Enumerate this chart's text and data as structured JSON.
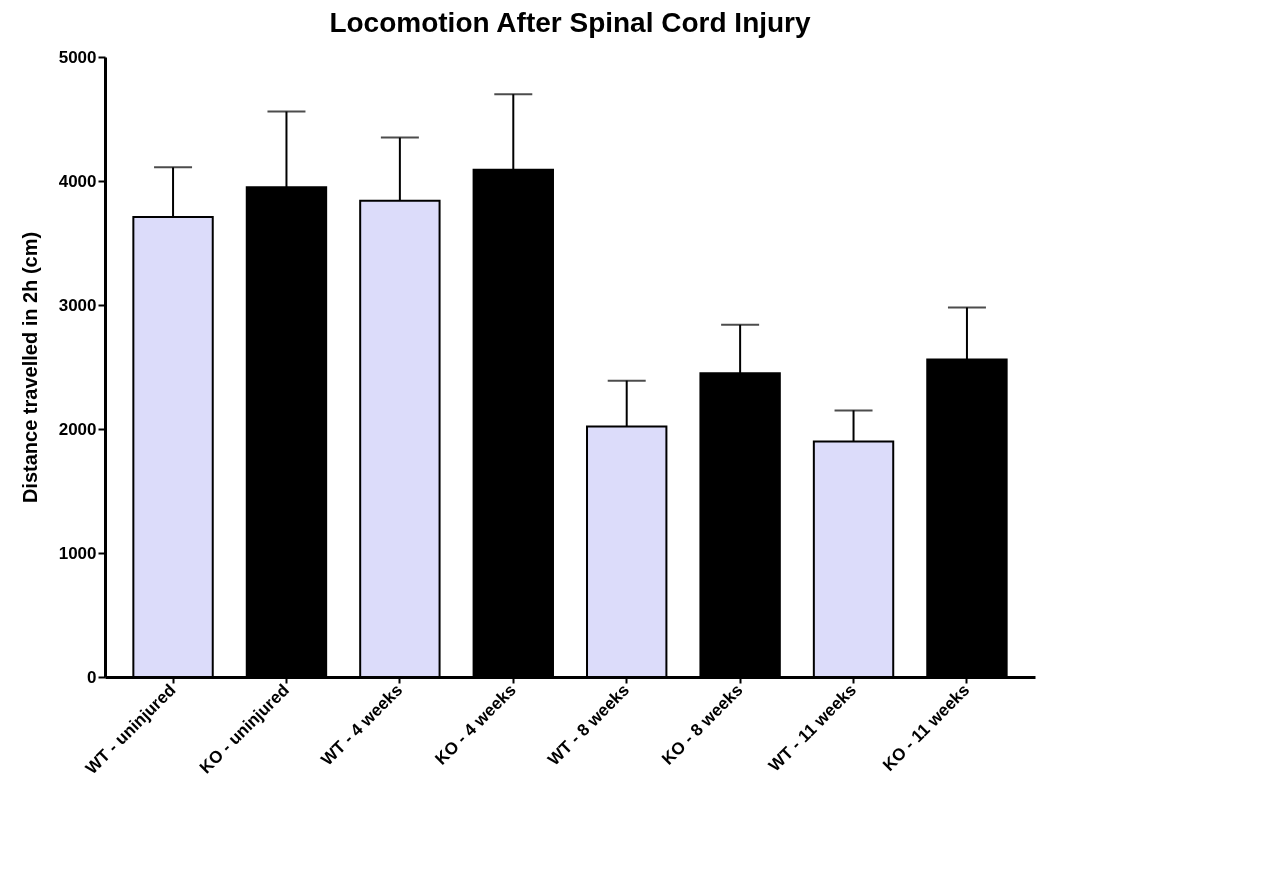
{
  "chart_data": {
    "type": "bar",
    "title": "Locomotion After Spinal Cord Injury",
    "ylabel": "Distance travelled in 2h (cm)",
    "categories": [
      "WT - uninjured",
      "KO - uninjured",
      "WT - 4 weeks",
      "KO - 4 weeks",
      "WT - 8 weeks",
      "KO - 8 weeks",
      "WT - 11 weeks",
      "KO - 11 weeks"
    ],
    "values": [
      3710,
      3950,
      3840,
      4090,
      2020,
      2450,
      1900,
      2560
    ],
    "colors": [
      "#dcdcfa",
      "#000000",
      "#dcdcfa",
      "#000000",
      "#dcdcfa",
      "#000000",
      "#dcdcfa",
      "#000000"
    ],
    "errors": [
      [
        3710,
        4110
      ],
      [
        3950,
        4560
      ],
      [
        3840,
        4350
      ],
      [
        4090,
        4700
      ],
      [
        2020,
        2390
      ],
      [
        2450,
        2840
      ],
      [
        1900,
        2150
      ],
      [
        2560,
        2980
      ]
    ],
    "ylim": [
      0,
      5000
    ],
    "yticks": [
      0,
      1000,
      2000,
      3000,
      4000,
      5000
    ],
    "grid": false
  }
}
